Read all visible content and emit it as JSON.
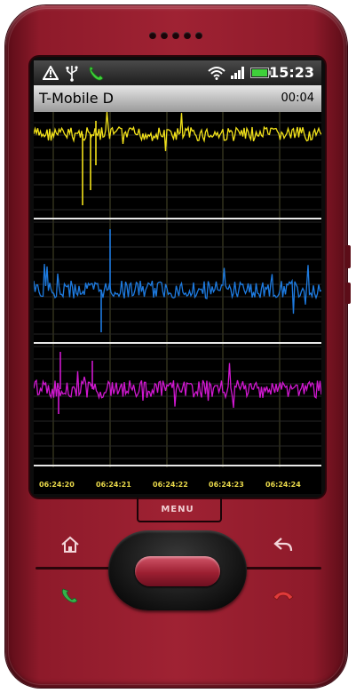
{
  "device": {
    "body_color": "#9f2233",
    "menu_label": "MENU"
  },
  "status_bar": {
    "icons": [
      "warning-icon",
      "usb-icon",
      "call-in-progress-icon",
      "wifi-icon",
      "signal-icon",
      "battery-icon"
    ],
    "time": "15:23"
  },
  "app": {
    "title": "T-Mobile D",
    "elapsed": "00:04"
  },
  "chart_data": {
    "type": "line",
    "x_tick_labels": [
      "06:24:20",
      "06:24:21",
      "06:24:22",
      "06:24:23",
      "06:24:24"
    ],
    "series": [
      {
        "color": "#f2e21a"
      },
      {
        "color": "#1e7be0"
      },
      {
        "color": "#d018d0"
      }
    ],
    "grid": true
  },
  "hardware_buttons": [
    "home-icon",
    "back-icon",
    "call-icon",
    "end-call-icon"
  ]
}
